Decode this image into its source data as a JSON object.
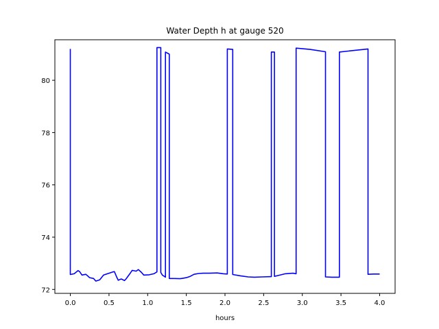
{
  "chart_data": {
    "type": "line",
    "title": "Water Depth h at gauge 520",
    "xlabel": "hours",
    "ylabel": "",
    "xlim": [
      -0.2,
      4.2
    ],
    "ylim": [
      71.85,
      81.55
    ],
    "xticks": [
      0.0,
      0.5,
      1.0,
      1.5,
      2.0,
      2.5,
      3.0,
      3.5,
      4.0
    ],
    "xtick_labels": [
      "0.0",
      "0.5",
      "1.0",
      "1.5",
      "2.0",
      "2.5",
      "3.0",
      "3.5",
      "4.0"
    ],
    "yticks": [
      72,
      74,
      76,
      78,
      80
    ],
    "ytick_labels": [
      "72",
      "74",
      "76",
      "78",
      "80"
    ],
    "grid": false,
    "series": [
      {
        "color": "#0000ff",
        "x": [
          0.0,
          0.0,
          0.05,
          0.1,
          0.12,
          0.15,
          0.2,
          0.25,
          0.3,
          0.33,
          0.38,
          0.43,
          0.5,
          0.55,
          0.57,
          0.6,
          0.62,
          0.64,
          0.66,
          0.7,
          0.72,
          0.77,
          0.8,
          0.85,
          0.88,
          0.92,
          0.95,
          1.02,
          1.08,
          1.12,
          1.12,
          1.17,
          1.17,
          1.19,
          1.23,
          1.23,
          1.28,
          1.28,
          1.31,
          1.33,
          1.33,
          1.42,
          1.46,
          1.5,
          1.55,
          1.6,
          1.66,
          1.72,
          1.8,
          1.9,
          1.98,
          2.03,
          2.03,
          2.1,
          2.1,
          2.2,
          2.3,
          2.38,
          2.48,
          2.6,
          2.6,
          2.64,
          2.64,
          2.68,
          2.78,
          2.88,
          2.92,
          2.92,
          3.1,
          3.3,
          3.3,
          3.38,
          3.48,
          3.48,
          3.85,
          3.85,
          3.92,
          4.0
        ],
        "y": [
          81.2,
          72.57,
          72.6,
          72.72,
          72.68,
          72.55,
          72.58,
          72.45,
          72.42,
          72.32,
          72.37,
          72.55,
          72.62,
          72.67,
          72.68,
          72.47,
          72.35,
          72.38,
          72.4,
          72.34,
          72.4,
          72.6,
          72.73,
          72.7,
          72.76,
          72.65,
          72.55,
          72.56,
          72.6,
          72.67,
          81.25,
          81.25,
          72.65,
          72.55,
          72.47,
          81.08,
          81.0,
          72.42,
          72.42,
          72.42,
          72.42,
          72.41,
          72.43,
          72.45,
          72.5,
          72.58,
          72.61,
          72.62,
          72.62,
          72.63,
          72.6,
          72.59,
          81.2,
          81.18,
          72.57,
          72.52,
          72.48,
          72.47,
          72.48,
          72.49,
          81.08,
          81.08,
          72.5,
          72.53,
          72.6,
          72.62,
          72.6,
          81.23,
          81.18,
          81.09,
          72.48,
          72.47,
          72.47,
          81.08,
          81.2,
          72.58,
          72.59,
          72.59
        ]
      }
    ]
  }
}
